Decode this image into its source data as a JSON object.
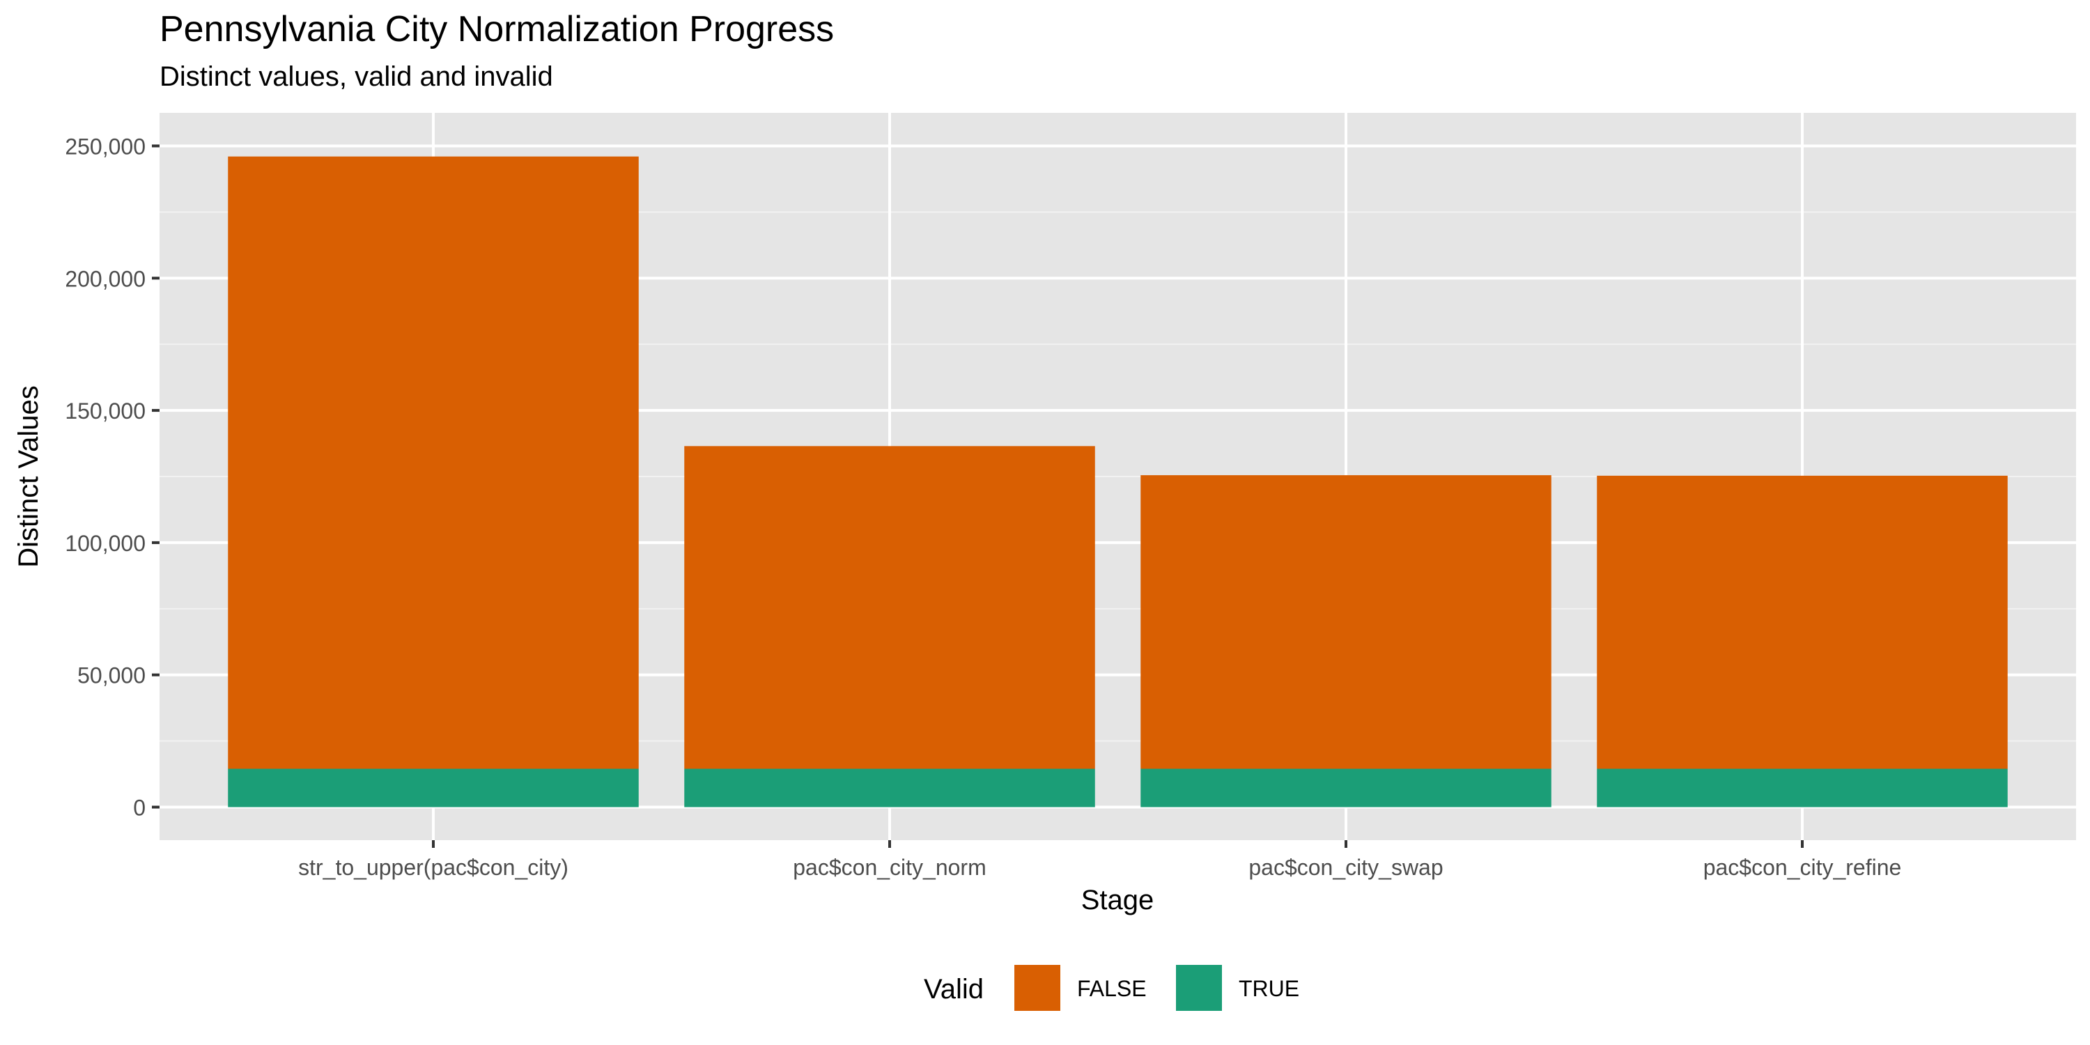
{
  "chart_data": {
    "type": "bar",
    "stacked": true,
    "title": "Pennsylvania City Normalization Progress",
    "subtitle": "Distinct values, valid and invalid",
    "xlabel": "Stage",
    "ylabel": "Distinct Values",
    "categories": [
      "str_to_upper(pac$con_city)",
      "pac$con_city_norm",
      "pac$con_city_swap",
      "pac$con_city_refine"
    ],
    "series": [
      {
        "name": "TRUE",
        "color": "#1B9E77",
        "values": [
          14500,
          14500,
          14500,
          14500
        ]
      },
      {
        "name": "FALSE",
        "color": "#D95F02",
        "values": [
          231500,
          122000,
          111000,
          110800
        ]
      }
    ],
    "ylim": [
      -12500,
      262500
    ],
    "yticks": [
      0,
      50000,
      100000,
      150000,
      200000,
      250000
    ],
    "ytick_labels": [
      "0",
      "50,000",
      "100,000",
      "150,000",
      "200,000",
      "250,000"
    ],
    "grid": true,
    "legend": {
      "title": "Valid",
      "position": "bottom",
      "entries": [
        {
          "label": "FALSE",
          "color": "#D95F02"
        },
        {
          "label": "TRUE",
          "color": "#1B9E77"
        }
      ]
    }
  }
}
